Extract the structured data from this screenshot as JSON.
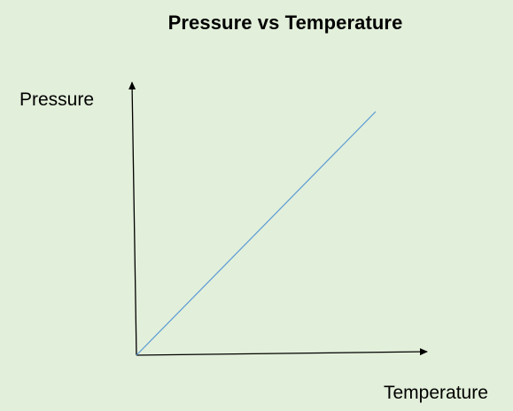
{
  "chart_data": {
    "type": "line",
    "title": "Pressure vs Temperature",
    "xlabel": "Temperature",
    "ylabel": "Pressure",
    "xlim": [
      0,
      10
    ],
    "ylim": [
      0,
      10
    ],
    "grid": false,
    "legend": "none",
    "series": [
      {
        "x": [
          0,
          10
        ],
        "y": [
          0,
          10
        ]
      }
    ],
    "colors": {
      "background": "#e2efda",
      "axis": "#000000",
      "line": "#5b9bd5"
    }
  }
}
